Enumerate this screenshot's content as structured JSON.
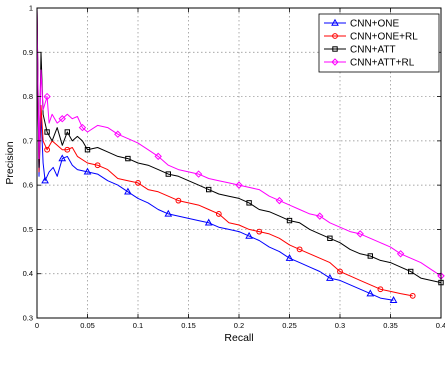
{
  "chart_data": {
    "type": "line",
    "title": "",
    "xlabel": "Recall",
    "ylabel": "Precision",
    "xlim": [
      0,
      0.4
    ],
    "ylim": [
      0.3,
      1.0
    ],
    "grid": true,
    "legend_position": "top-right",
    "x_tick_labels": [
      "0",
      "0.05",
      "0.1",
      "0.15",
      "0.2",
      "0.25",
      "0.3",
      "0.35",
      "0.4"
    ],
    "y_tick_labels": [
      "0.3",
      "0.4",
      "0.5",
      "0.6",
      "0.7",
      "0.8",
      "0.9",
      "1"
    ],
    "series": [
      {
        "name": "CNN+ONE",
        "color": "#0000ff",
        "marker": "triangle",
        "points": [
          [
            0.0,
            1.0
          ],
          [
            0.002,
            0.62
          ],
          [
            0.004,
            0.76
          ],
          [
            0.006,
            0.65
          ],
          [
            0.008,
            0.61
          ],
          [
            0.012,
            0.63
          ],
          [
            0.016,
            0.64
          ],
          [
            0.02,
            0.62
          ],
          [
            0.025,
            0.66
          ],
          [
            0.03,
            0.665
          ],
          [
            0.035,
            0.645
          ],
          [
            0.04,
            0.635
          ],
          [
            0.05,
            0.63
          ],
          [
            0.06,
            0.625
          ],
          [
            0.07,
            0.61
          ],
          [
            0.08,
            0.6
          ],
          [
            0.09,
            0.585
          ],
          [
            0.1,
            0.57
          ],
          [
            0.11,
            0.56
          ],
          [
            0.12,
            0.545
          ],
          [
            0.13,
            0.535
          ],
          [
            0.14,
            0.53
          ],
          [
            0.15,
            0.525
          ],
          [
            0.16,
            0.52
          ],
          [
            0.17,
            0.515
          ],
          [
            0.18,
            0.505
          ],
          [
            0.19,
            0.5
          ],
          [
            0.2,
            0.495
          ],
          [
            0.21,
            0.485
          ],
          [
            0.22,
            0.475
          ],
          [
            0.23,
            0.46
          ],
          [
            0.24,
            0.45
          ],
          [
            0.25,
            0.435
          ],
          [
            0.26,
            0.425
          ],
          [
            0.27,
            0.415
          ],
          [
            0.28,
            0.405
          ],
          [
            0.29,
            0.39
          ],
          [
            0.3,
            0.385
          ],
          [
            0.31,
            0.375
          ],
          [
            0.32,
            0.365
          ],
          [
            0.33,
            0.355
          ],
          [
            0.34,
            0.345
          ],
          [
            0.353,
            0.34
          ]
        ]
      },
      {
        "name": "CNN+ONE+RL",
        "color": "#ff0000",
        "marker": "circle",
        "points": [
          [
            0.0,
            1.0
          ],
          [
            0.002,
            0.63
          ],
          [
            0.004,
            0.78
          ],
          [
            0.006,
            0.7
          ],
          [
            0.01,
            0.68
          ],
          [
            0.015,
            0.7
          ],
          [
            0.02,
            0.69
          ],
          [
            0.025,
            0.68
          ],
          [
            0.03,
            0.68
          ],
          [
            0.035,
            0.685
          ],
          [
            0.04,
            0.665
          ],
          [
            0.05,
            0.65
          ],
          [
            0.06,
            0.645
          ],
          [
            0.07,
            0.635
          ],
          [
            0.08,
            0.615
          ],
          [
            0.09,
            0.61
          ],
          [
            0.1,
            0.605
          ],
          [
            0.11,
            0.59
          ],
          [
            0.12,
            0.585
          ],
          [
            0.13,
            0.575
          ],
          [
            0.14,
            0.565
          ],
          [
            0.15,
            0.56
          ],
          [
            0.16,
            0.555
          ],
          [
            0.17,
            0.545
          ],
          [
            0.18,
            0.535
          ],
          [
            0.19,
            0.515
          ],
          [
            0.2,
            0.51
          ],
          [
            0.21,
            0.5
          ],
          [
            0.22,
            0.495
          ],
          [
            0.23,
            0.49
          ],
          [
            0.24,
            0.48
          ],
          [
            0.25,
            0.465
          ],
          [
            0.26,
            0.455
          ],
          [
            0.27,
            0.445
          ],
          [
            0.28,
            0.435
          ],
          [
            0.29,
            0.425
          ],
          [
            0.3,
            0.405
          ],
          [
            0.31,
            0.395
          ],
          [
            0.32,
            0.385
          ],
          [
            0.33,
            0.375
          ],
          [
            0.34,
            0.365
          ],
          [
            0.35,
            0.36
          ],
          [
            0.36,
            0.355
          ],
          [
            0.372,
            0.35
          ]
        ]
      },
      {
        "name": "CNN+ATT",
        "color": "#000000",
        "marker": "square",
        "points": [
          [
            0.0,
            1.0
          ],
          [
            0.002,
            0.64
          ],
          [
            0.004,
            0.9
          ],
          [
            0.006,
            0.76
          ],
          [
            0.01,
            0.72
          ],
          [
            0.015,
            0.7
          ],
          [
            0.02,
            0.73
          ],
          [
            0.025,
            0.69
          ],
          [
            0.03,
            0.72
          ],
          [
            0.035,
            0.7
          ],
          [
            0.04,
            0.71
          ],
          [
            0.045,
            0.7
          ],
          [
            0.05,
            0.68
          ],
          [
            0.06,
            0.685
          ],
          [
            0.07,
            0.675
          ],
          [
            0.08,
            0.665
          ],
          [
            0.09,
            0.66
          ],
          [
            0.1,
            0.65
          ],
          [
            0.11,
            0.645
          ],
          [
            0.12,
            0.635
          ],
          [
            0.13,
            0.625
          ],
          [
            0.14,
            0.62
          ],
          [
            0.15,
            0.61
          ],
          [
            0.16,
            0.6
          ],
          [
            0.17,
            0.59
          ],
          [
            0.18,
            0.58
          ],
          [
            0.19,
            0.575
          ],
          [
            0.2,
            0.57
          ],
          [
            0.21,
            0.56
          ],
          [
            0.22,
            0.545
          ],
          [
            0.23,
            0.54
          ],
          [
            0.24,
            0.53
          ],
          [
            0.25,
            0.52
          ],
          [
            0.26,
            0.515
          ],
          [
            0.27,
            0.5
          ],
          [
            0.28,
            0.49
          ],
          [
            0.29,
            0.48
          ],
          [
            0.3,
            0.47
          ],
          [
            0.31,
            0.455
          ],
          [
            0.32,
            0.445
          ],
          [
            0.33,
            0.44
          ],
          [
            0.34,
            0.43
          ],
          [
            0.35,
            0.425
          ],
          [
            0.36,
            0.415
          ],
          [
            0.37,
            0.405
          ],
          [
            0.38,
            0.39
          ],
          [
            0.39,
            0.385
          ],
          [
            0.4,
            0.38
          ]
        ]
      },
      {
        "name": "CNN+ATT+RL",
        "color": "#ff00ff",
        "marker": "diamond",
        "points": [
          [
            0.0,
            1.0
          ],
          [
            0.002,
            0.66
          ],
          [
            0.004,
            0.86
          ],
          [
            0.006,
            0.77
          ],
          [
            0.01,
            0.8
          ],
          [
            0.012,
            0.74
          ],
          [
            0.015,
            0.76
          ],
          [
            0.02,
            0.74
          ],
          [
            0.025,
            0.75
          ],
          [
            0.03,
            0.76
          ],
          [
            0.035,
            0.75
          ],
          [
            0.04,
            0.755
          ],
          [
            0.045,
            0.73
          ],
          [
            0.05,
            0.72
          ],
          [
            0.06,
            0.735
          ],
          [
            0.07,
            0.73
          ],
          [
            0.08,
            0.715
          ],
          [
            0.09,
            0.705
          ],
          [
            0.1,
            0.695
          ],
          [
            0.11,
            0.68
          ],
          [
            0.12,
            0.665
          ],
          [
            0.13,
            0.645
          ],
          [
            0.14,
            0.635
          ],
          [
            0.15,
            0.63
          ],
          [
            0.16,
            0.625
          ],
          [
            0.17,
            0.615
          ],
          [
            0.18,
            0.61
          ],
          [
            0.19,
            0.605
          ],
          [
            0.2,
            0.6
          ],
          [
            0.21,
            0.595
          ],
          [
            0.22,
            0.59
          ],
          [
            0.23,
            0.575
          ],
          [
            0.24,
            0.565
          ],
          [
            0.25,
            0.555
          ],
          [
            0.26,
            0.545
          ],
          [
            0.27,
            0.535
          ],
          [
            0.28,
            0.53
          ],
          [
            0.29,
            0.515
          ],
          [
            0.3,
            0.505
          ],
          [
            0.31,
            0.495
          ],
          [
            0.32,
            0.49
          ],
          [
            0.33,
            0.48
          ],
          [
            0.34,
            0.47
          ],
          [
            0.35,
            0.46
          ],
          [
            0.36,
            0.445
          ],
          [
            0.37,
            0.435
          ],
          [
            0.38,
            0.425
          ],
          [
            0.39,
            0.41
          ],
          [
            0.4,
            0.395
          ]
        ]
      }
    ]
  }
}
